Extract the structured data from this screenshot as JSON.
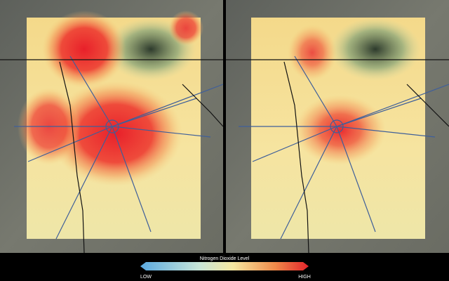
{
  "legend": {
    "title": "Nitrogen Dioxide Level",
    "low_label": "LOW",
    "high_label": "HIGH"
  }
}
